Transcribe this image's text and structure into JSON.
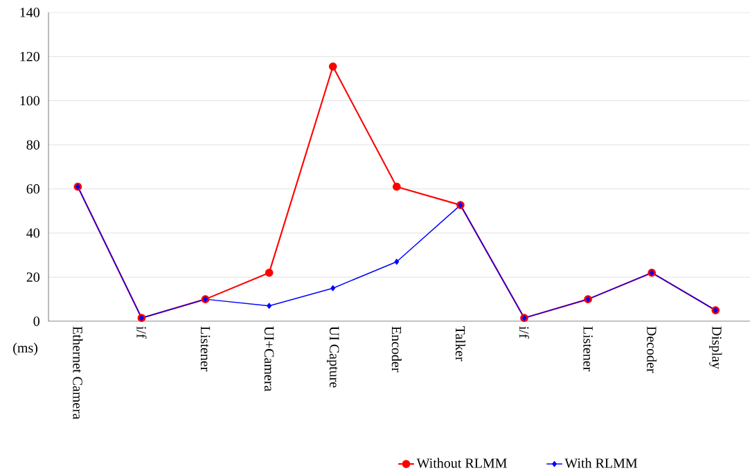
{
  "chart_data": {
    "type": "line",
    "ylabel": "(ms)",
    "categories": [
      "Ethernet Camera",
      "i/f",
      "Listener",
      "UI+Camera",
      "UI Capture",
      "Encoder",
      "Talker",
      "i/f",
      "Listener",
      "Decoder",
      "Display"
    ],
    "series": [
      {
        "name": "Without RLMM",
        "color": "#ff0000",
        "marker": "circle",
        "values": [
          61,
          1.5,
          10,
          22,
          115.5,
          61,
          52.7,
          1.5,
          10,
          22,
          5
        ]
      },
      {
        "name": "With RLMM",
        "color": "#0000ff",
        "marker": "diamond",
        "values": [
          61,
          1.5,
          10,
          7,
          15,
          27,
          52.7,
          1.5,
          10,
          22,
          5
        ]
      }
    ],
    "ylim": [
      0,
      140
    ],
    "yticks": [
      0,
      20,
      40,
      60,
      80,
      100,
      120,
      140
    ],
    "grid": "y",
    "legend": "bottom",
    "line_style": "solid"
  }
}
